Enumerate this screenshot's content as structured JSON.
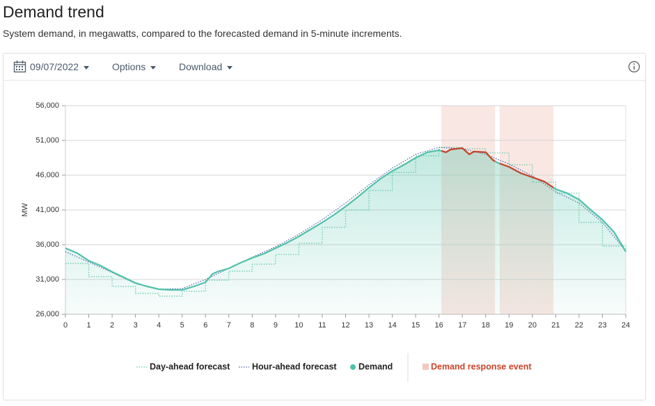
{
  "toolbar": {
    "date": "09/07/2022",
    "options": "Options",
    "download": "Download"
  },
  "chart_data": {
    "type": "line",
    "title": "Demand trend",
    "subtitle": "System demand, in megawatts, compared to the forecasted demand in 5-minute increments.",
    "y_label": "MW",
    "xlim": [
      0,
      24
    ],
    "xticks": [
      0,
      1,
      2,
      3,
      4,
      5,
      6,
      7,
      8,
      9,
      10,
      11,
      12,
      13,
      14,
      15,
      16,
      17,
      18,
      19,
      20,
      21,
      22,
      23,
      24
    ],
    "ylim": [
      26000,
      56000
    ],
    "yticks": [
      {
        "value": 26000,
        "label": "26,000"
      },
      {
        "value": 31000,
        "label": "31,000"
      },
      {
        "value": 36000,
        "label": "36,000"
      },
      {
        "value": 41000,
        "label": "41,000"
      },
      {
        "value": 46000,
        "label": "46,000"
      },
      {
        "value": 51000,
        "label": "51,000"
      },
      {
        "value": 56000,
        "label": "56,000"
      }
    ],
    "grid": true,
    "series": [
      {
        "name": "Day-ahead forecast",
        "color": "#5cc9a7",
        "style": "dotted",
        "step": true,
        "x": [
          0,
          1,
          2,
          3,
          4,
          5,
          6,
          7,
          8,
          9,
          10,
          11,
          12,
          13,
          14,
          15,
          16,
          17,
          18,
          19,
          20,
          21,
          22,
          23,
          24
        ],
        "values": [
          33300,
          31400,
          30000,
          29000,
          28600,
          29300,
          30900,
          32200,
          33200,
          34600,
          36200,
          38500,
          41000,
          43800,
          46400,
          48800,
          50000,
          49800,
          49200,
          47500,
          45000,
          43400,
          39200,
          35800,
          35000
        ]
      },
      {
        "name": "Hour-ahead forecast",
        "color": "#4a5aa8",
        "style": "dotted",
        "step": false,
        "x": [
          0,
          1,
          2,
          3,
          4,
          5,
          6,
          7,
          8,
          9,
          10,
          11,
          12,
          13,
          14,
          15,
          16,
          17,
          18,
          19,
          20,
          21,
          22,
          23,
          24
        ],
        "values": [
          35000,
          33500,
          32000,
          30400,
          29600,
          29700,
          31000,
          32600,
          34200,
          35700,
          37500,
          39600,
          42000,
          44600,
          47000,
          49000,
          50000,
          49800,
          49000,
          47600,
          45900,
          43600,
          42000,
          39200,
          35100
        ]
      },
      {
        "name": "Demand",
        "color": "#4fc1a8",
        "style": "solid",
        "step": false,
        "event_color": "#c8442a",
        "x": [
          0,
          0.5,
          1,
          1.5,
          2,
          2.5,
          3,
          3.5,
          4,
          4.5,
          5,
          5.5,
          6,
          6.3,
          6.5,
          7,
          7.5,
          8,
          8.5,
          9,
          9.5,
          10,
          10.5,
          11,
          11.5,
          12,
          12.5,
          13,
          13.5,
          14,
          14.5,
          15,
          15.5,
          16,
          16.3,
          16.5,
          17,
          17.3,
          17.5,
          18,
          18.3,
          18.5,
          19,
          19.5,
          20,
          20.5,
          21,
          21.5,
          22,
          22.5,
          23,
          23.5,
          24
        ],
        "values": [
          35500,
          34800,
          33700,
          33000,
          32100,
          31300,
          30500,
          30000,
          29600,
          29500,
          29500,
          30000,
          30600,
          31800,
          32100,
          32600,
          33400,
          34100,
          34700,
          35500,
          36300,
          37200,
          38200,
          39200,
          40300,
          41500,
          42800,
          44200,
          45500,
          46600,
          47500,
          48500,
          49300,
          49600,
          49300,
          49700,
          49900,
          49000,
          49400,
          49300,
          48200,
          47800,
          47200,
          46300,
          45700,
          45100,
          44000,
          43400,
          42500,
          41000,
          39600,
          37800,
          35000
        ]
      }
    ],
    "events": {
      "name": "Demand response event",
      "color": "#f2c9c2",
      "label_color": "#c8442a",
      "ranges": [
        [
          16.1,
          18.4
        ],
        [
          18.6,
          20.9
        ]
      ]
    }
  }
}
